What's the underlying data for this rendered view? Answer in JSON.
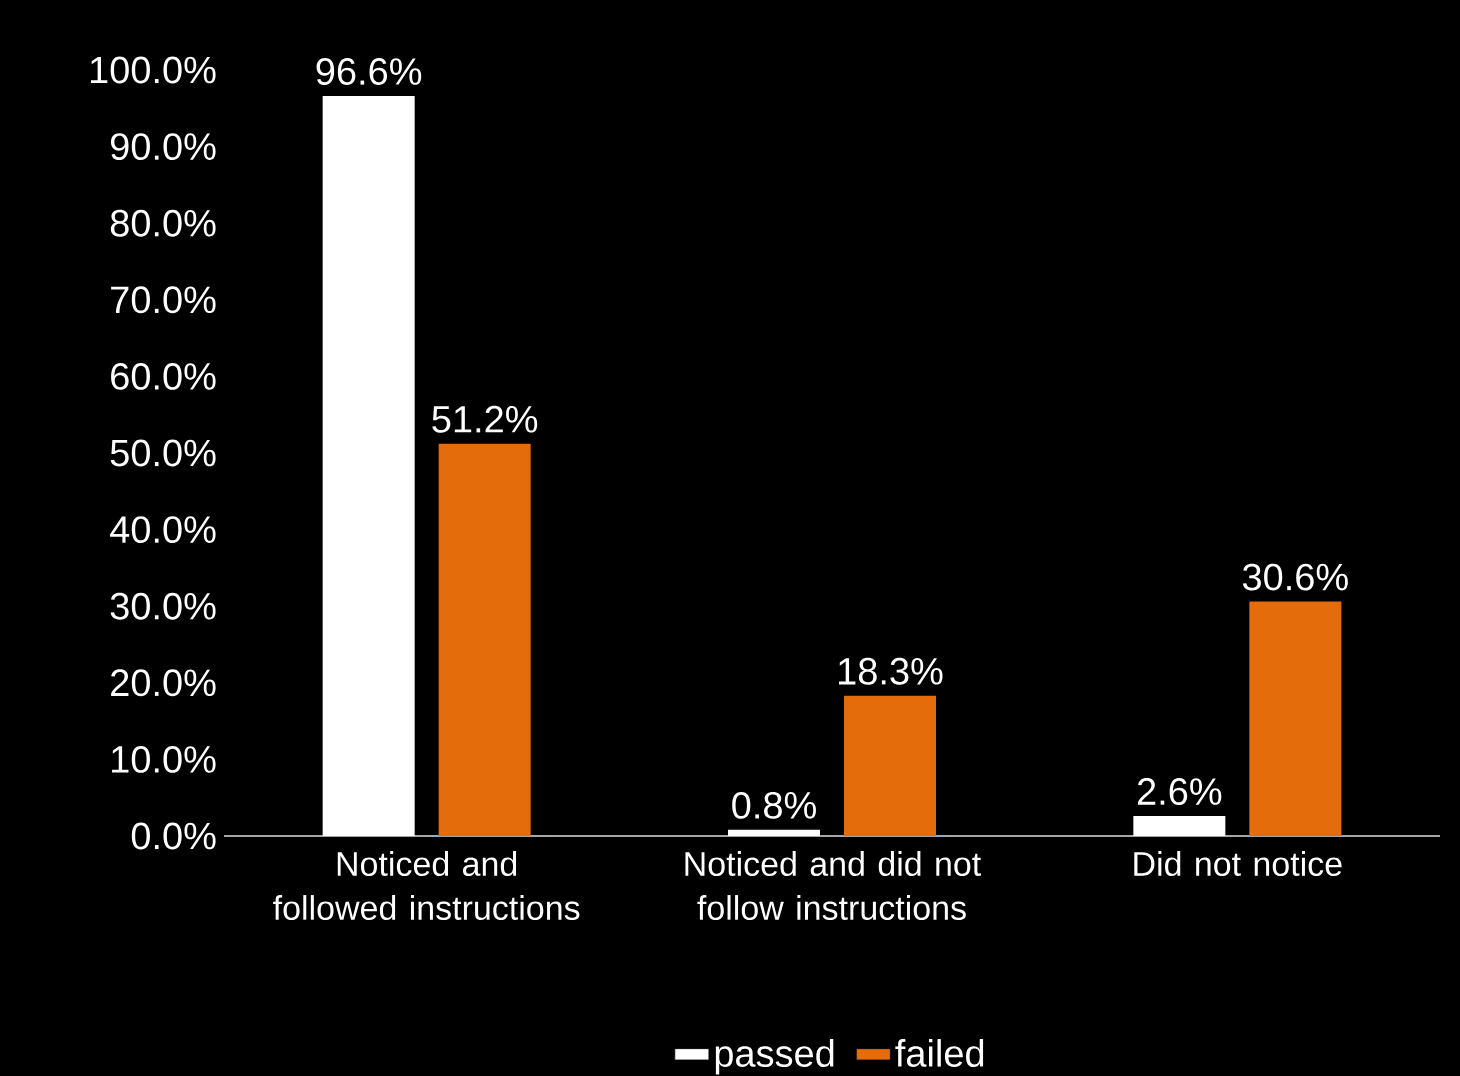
{
  "chart_data": {
    "type": "bar",
    "categories": [
      "Noticed and followed instructions",
      "Noticed and did not follow instructions",
      "Did not notice"
    ],
    "series": [
      {
        "name": "passed",
        "color": "#ffffff",
        "values": [
          96.6,
          0.8,
          2.6
        ],
        "value_labels": [
          "96.6%",
          "0.8%",
          "2.6%"
        ]
      },
      {
        "name": "failed",
        "color": "#e46c0a",
        "values": [
          51.2,
          18.3,
          30.6
        ],
        "value_labels": [
          "51.2%",
          "18.3%",
          "30.6%"
        ]
      }
    ],
    "ylim": [
      0,
      100
    ],
    "yticks": [
      {
        "value": 0,
        "label": "0.0%"
      },
      {
        "value": 10,
        "label": "10.0%"
      },
      {
        "value": 20,
        "label": "20.0%"
      },
      {
        "value": 30,
        "label": "30.0%"
      },
      {
        "value": 40,
        "label": "40.0%"
      },
      {
        "value": 50,
        "label": "50.0%"
      },
      {
        "value": 60,
        "label": "60.0%"
      },
      {
        "value": 70,
        "label": "70.0%"
      },
      {
        "value": 80,
        "label": "80.0%"
      },
      {
        "value": 90,
        "label": "90.0%"
      },
      {
        "value": 100,
        "label": "100.0%"
      }
    ],
    "grid": false,
    "legend": "bottom"
  }
}
